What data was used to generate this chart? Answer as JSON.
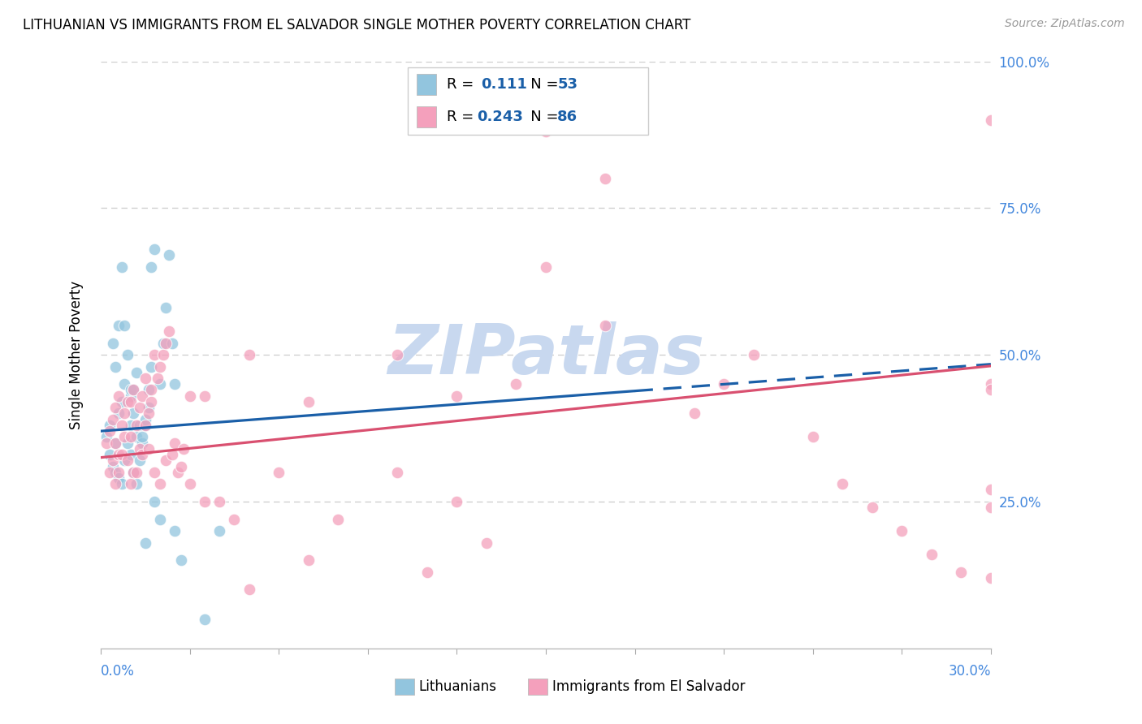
{
  "title": "LITHUANIAN VS IMMIGRANTS FROM EL SALVADOR SINGLE MOTHER POVERTY CORRELATION CHART",
  "source": "Source: ZipAtlas.com",
  "ylabel": "Single Mother Poverty",
  "xmin": 0.0,
  "xmax": 30.0,
  "ymin": 0.0,
  "ymax": 100.0,
  "ytick_values": [
    0,
    25,
    50,
    75,
    100
  ],
  "ytick_labels": [
    "",
    "25.0%",
    "50.0%",
    "75.0%",
    "100.0%"
  ],
  "blue_R": 0.111,
  "blue_N": 53,
  "pink_R": 0.243,
  "pink_N": 86,
  "blue_color": "#92c5de",
  "pink_color": "#f4a0bc",
  "blue_line_color": "#1a5fa8",
  "pink_line_color": "#d95070",
  "right_axis_color": "#4488dd",
  "bottom_axis_color": "#4488dd",
  "blue_scatter_x": [
    0.2,
    0.3,
    0.3,
    0.4,
    0.4,
    0.5,
    0.5,
    0.5,
    0.6,
    0.6,
    0.6,
    0.7,
    0.7,
    0.7,
    0.8,
    0.8,
    0.8,
    0.9,
    0.9,
    1.0,
    1.0,
    1.0,
    1.0,
    1.1,
    1.1,
    1.1,
    1.2,
    1.2,
    1.2,
    1.3,
    1.3,
    1.4,
    1.4,
    1.5,
    1.5,
    1.5,
    1.6,
    1.6,
    1.7,
    1.7,
    1.8,
    1.8,
    2.0,
    2.0,
    2.1,
    2.2,
    2.3,
    2.4,
    2.5,
    2.5,
    2.7,
    3.5,
    4.0
  ],
  "blue_scatter_y": [
    36,
    33,
    38,
    31,
    52,
    30,
    35,
    48,
    29,
    40,
    55,
    28,
    42,
    65,
    32,
    45,
    55,
    35,
    50,
    33,
    38,
    43,
    44,
    30,
    40,
    44,
    28,
    36,
    47,
    32,
    38,
    35,
    36,
    18,
    38,
    39,
    41,
    44,
    48,
    65,
    25,
    68,
    22,
    45,
    52,
    58,
    67,
    52,
    20,
    45,
    15,
    5,
    20
  ],
  "pink_scatter_x": [
    0.2,
    0.3,
    0.3,
    0.4,
    0.4,
    0.5,
    0.5,
    0.5,
    0.6,
    0.6,
    0.6,
    0.7,
    0.7,
    0.8,
    0.8,
    0.9,
    0.9,
    1.0,
    1.0,
    1.0,
    1.1,
    1.1,
    1.2,
    1.2,
    1.3,
    1.3,
    1.4,
    1.4,
    1.5,
    1.5,
    1.6,
    1.6,
    1.7,
    1.7,
    1.8,
    1.8,
    1.9,
    2.0,
    2.0,
    2.1,
    2.2,
    2.2,
    2.3,
    2.4,
    2.5,
    2.6,
    2.7,
    2.8,
    3.0,
    3.0,
    3.5,
    3.5,
    4.0,
    4.5,
    5.0,
    5.0,
    6.0,
    7.0,
    7.0,
    8.0,
    10.0,
    10.0,
    11.0,
    12.0,
    12.0,
    13.0,
    14.0,
    15.0,
    15.0,
    17.0,
    17.0,
    20.0,
    21.0,
    22.0,
    24.0,
    25.0,
    26.0,
    27.0,
    28.0,
    29.0,
    30.0,
    30.0,
    30.0,
    30.0,
    30.0,
    30.0
  ],
  "pink_scatter_y": [
    35,
    30,
    37,
    32,
    39,
    28,
    35,
    41,
    30,
    33,
    43,
    33,
    38,
    36,
    40,
    32,
    42,
    28,
    36,
    42,
    30,
    44,
    30,
    38,
    34,
    41,
    33,
    43,
    38,
    46,
    34,
    40,
    42,
    44,
    30,
    50,
    46,
    28,
    48,
    50,
    32,
    52,
    54,
    33,
    35,
    30,
    31,
    34,
    28,
    43,
    25,
    43,
    25,
    22,
    10,
    50,
    30,
    15,
    42,
    22,
    30,
    50,
    13,
    25,
    43,
    18,
    45,
    65,
    88,
    55,
    80,
    40,
    45,
    50,
    36,
    28,
    24,
    20,
    16,
    13,
    12,
    45,
    44,
    90,
    27,
    24
  ],
  "blue_line_intercept": 37.0,
  "blue_line_slope": 0.38,
  "blue_dashed_from_x": 18.0,
  "pink_line_intercept": 32.5,
  "pink_line_slope": 0.52,
  "watermark_text": "ZIPatlas",
  "watermark_color": "#c8d8ef",
  "label_blue": "Lithuanians",
  "label_pink": "Immigrants from El Salvador"
}
